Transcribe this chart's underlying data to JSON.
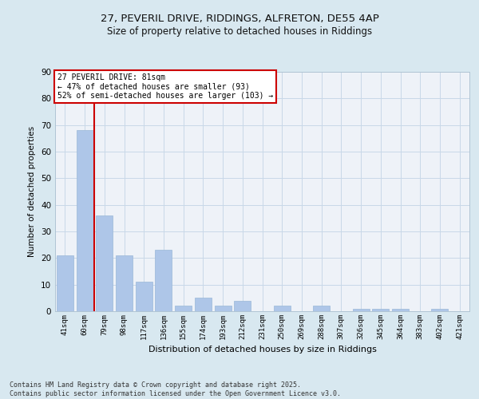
{
  "title_line1": "27, PEVERIL DRIVE, RIDDINGS, ALFRETON, DE55 4AP",
  "title_line2": "Size of property relative to detached houses in Riddings",
  "xlabel": "Distribution of detached houses by size in Riddings",
  "ylabel": "Number of detached properties",
  "categories": [
    "41sqm",
    "60sqm",
    "79sqm",
    "98sqm",
    "117sqm",
    "136sqm",
    "155sqm",
    "174sqm",
    "193sqm",
    "212sqm",
    "231sqm",
    "250sqm",
    "269sqm",
    "288sqm",
    "307sqm",
    "326sqm",
    "345sqm",
    "364sqm",
    "383sqm",
    "402sqm",
    "421sqm"
  ],
  "values": [
    21,
    68,
    36,
    21,
    11,
    23,
    2,
    5,
    2,
    4,
    0,
    2,
    0,
    2,
    0,
    1,
    1,
    1,
    0,
    1,
    0
  ],
  "bar_color": "#aec6e8",
  "bar_edgecolor": "#9ab8d8",
  "property_line_x": 1.5,
  "annotation_text": "27 PEVERIL DRIVE: 81sqm\n← 47% of detached houses are smaller (93)\n52% of semi-detached houses are larger (103) →",
  "annotation_box_color": "#ffffff",
  "annotation_box_edgecolor": "#cc0000",
  "vline_color": "#cc0000",
  "grid_color": "#c8d8e8",
  "background_color": "#d8e8f0",
  "plot_background": "#eef2f8",
  "footer_text": "Contains HM Land Registry data © Crown copyright and database right 2025.\nContains public sector information licensed under the Open Government Licence v3.0.",
  "ylim": [
    0,
    90
  ],
  "yticks": [
    0,
    10,
    20,
    30,
    40,
    50,
    60,
    70,
    80,
    90
  ]
}
